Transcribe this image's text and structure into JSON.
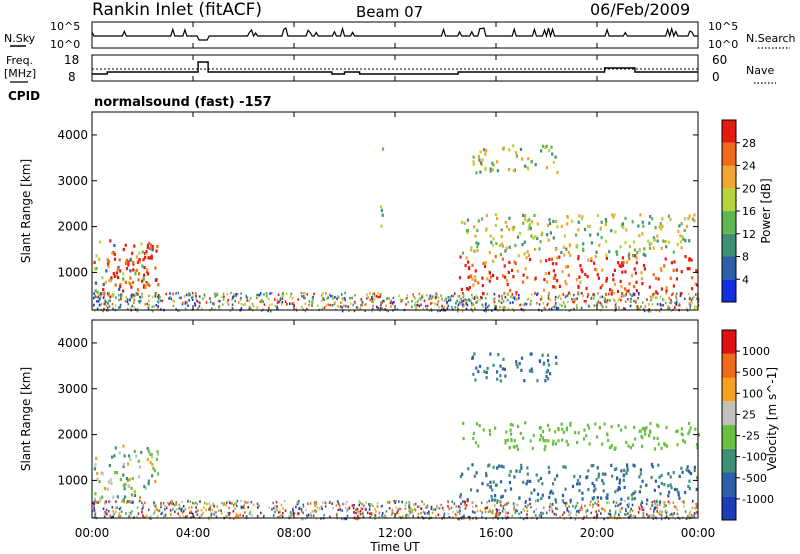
{
  "header": {
    "station": "Rankin Inlet (fitACF)",
    "beam": "Beam 07",
    "date": "06/Feb/2009"
  },
  "noise_panel": {
    "left_label": "N.Sky",
    "left_ticks": [
      "10^5",
      "10^0"
    ],
    "right_label": "N.Search",
    "right_ticks": [
      "10^5",
      "10^0"
    ]
  },
  "freq_panel": {
    "left_label_top": "Freq.",
    "left_label_bottom": "[MHz]",
    "left_ticks": [
      "18",
      "8"
    ],
    "right_label": "Nave",
    "right_ticks": [
      "60",
      "0"
    ],
    "cpid_label": "CPID",
    "cpid_value": "normalsound (fast) -157"
  },
  "colors": {
    "power": [
      "#1030e0",
      "#2c5fa8",
      "#3f8f77",
      "#5fb74f",
      "#b8d43c",
      "#f0a530",
      "#f06a18",
      "#e41b10"
    ],
    "velocity": [
      "#e01010",
      "#f06a18",
      "#f5a020",
      "#c0c0bc",
      "#68c040",
      "#3f8f77",
      "#2c5fa8",
      "#1c3cb8"
    ]
  },
  "chart_data": [
    {
      "type": "heatmap",
      "name": "power",
      "ylabel": "Slant Range [km]",
      "y_ticks": [
        "1000",
        "2000",
        "3000",
        "4000"
      ],
      "ylim": [
        180,
        4500
      ],
      "xlim": [
        "00:00",
        "24:00"
      ],
      "colorbar_label": "Power [dB]",
      "colorbar_ticks": [
        "4",
        "8",
        "12",
        "16",
        "20",
        "24",
        "28"
      ],
      "colorbar_range": [
        0,
        30
      ],
      "echo_regions": [
        {
          "t0": 0.0,
          "t1": 2.6,
          "r0": 500,
          "r1": 1800,
          "level": "mixed"
        },
        {
          "t0": 0.5,
          "t1": 2.5,
          "r0": 700,
          "r1": 1600,
          "level": "high"
        },
        {
          "t0": 14.5,
          "t1": 24.0,
          "r0": 550,
          "r1": 1400,
          "level": "high"
        },
        {
          "t0": 14.5,
          "t1": 24.0,
          "r0": 1400,
          "r1": 2300,
          "level": "mid"
        },
        {
          "t0": 15.0,
          "t1": 18.5,
          "r0": 3200,
          "r1": 3800,
          "level": "mid"
        },
        {
          "t0": 11.4,
          "t1": 11.5,
          "r0": 2000,
          "r1": 3900,
          "level": "mid"
        }
      ]
    },
    {
      "type": "heatmap",
      "name": "velocity",
      "ylabel": "Slant Range [km]",
      "y_ticks": [
        "1000",
        "2000",
        "3000",
        "4000"
      ],
      "ylim": [
        180,
        4500
      ],
      "xlim": [
        "00:00",
        "24:00"
      ],
      "xlabel": "Time UT",
      "x_ticks": [
        "00:00",
        "04:00",
        "08:00",
        "12:00",
        "16:00",
        "20:00",
        "00:00"
      ],
      "colorbar_label": "Velocity [m s^-1]",
      "colorbar_ticks": [
        "1000",
        "500",
        "100",
        "25",
        "-25",
        "-100",
        "-500",
        "-1000"
      ],
      "echo_regions": [
        {
          "t0": 0.0,
          "t1": 2.6,
          "r0": 500,
          "r1": 1800,
          "level": "positive"
        },
        {
          "t0": 14.5,
          "t1": 24.0,
          "r0": 550,
          "r1": 1400,
          "level": "negative"
        },
        {
          "t0": 14.5,
          "t1": 24.0,
          "r0": 1700,
          "r1": 2300,
          "level": "ground"
        },
        {
          "t0": 15.0,
          "t1": 18.5,
          "r0": 3200,
          "r1": 3800,
          "level": "negative"
        }
      ]
    }
  ]
}
